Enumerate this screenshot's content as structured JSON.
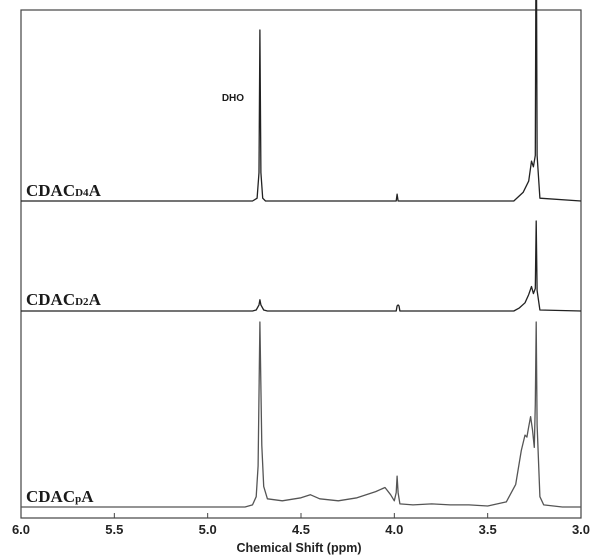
{
  "chart_data": {
    "type": "line",
    "xlabel": "Chemical Shift (ppm)",
    "ylabel": "",
    "xlim": [
      6.0,
      3.0
    ],
    "x_reversed": true,
    "x_ticks": [
      "6.0",
      "5.5",
      "5.0",
      "4.5",
      "4.0",
      "3.5",
      "3.0"
    ],
    "annotation": {
      "text": "DHO",
      "x": 4.72
    },
    "series": [
      {
        "name": "CDACD4A",
        "label_main": "CDAC",
        "label_sub": "D4",
        "label_end": "A",
        "points": [
          [
            6.0,
            0
          ],
          [
            4.76,
            0
          ],
          [
            4.735,
            0.5
          ],
          [
            4.725,
            5
          ],
          [
            4.72,
            30
          ],
          [
            4.715,
            5
          ],
          [
            4.705,
            0.5
          ],
          [
            4.69,
            0
          ],
          [
            3.99,
            0
          ],
          [
            3.985,
            1.2
          ],
          [
            3.98,
            0
          ],
          [
            3.36,
            0
          ],
          [
            3.31,
            1.5
          ],
          [
            3.28,
            3.5
          ],
          [
            3.265,
            7
          ],
          [
            3.255,
            6
          ],
          [
            3.245,
            8
          ],
          [
            3.24,
            55
          ],
          [
            3.235,
            8
          ],
          [
            3.22,
            0.5
          ],
          [
            3.0,
            0
          ]
        ]
      },
      {
        "name": "CDACD2A",
        "label_main": "CDAC",
        "label_sub": "D2",
        "label_end": "A",
        "points": [
          [
            6.0,
            0
          ],
          [
            4.76,
            0
          ],
          [
            4.74,
            1
          ],
          [
            4.725,
            6
          ],
          [
            4.72,
            11
          ],
          [
            4.715,
            6
          ],
          [
            4.7,
            1
          ],
          [
            4.68,
            0
          ],
          [
            3.99,
            0
          ],
          [
            3.985,
            5
          ],
          [
            3.98,
            6
          ],
          [
            3.975,
            5
          ],
          [
            3.97,
            0
          ],
          [
            3.36,
            0
          ],
          [
            3.33,
            3
          ],
          [
            3.3,
            8
          ],
          [
            3.28,
            16
          ],
          [
            3.265,
            24
          ],
          [
            3.255,
            17
          ],
          [
            3.245,
            22
          ],
          [
            3.24,
            88
          ],
          [
            3.235,
            20
          ],
          [
            3.22,
            1
          ],
          [
            3.0,
            0
          ]
        ]
      },
      {
        "name": "CDACpA",
        "label_main": "CDAC",
        "label_sub": "p",
        "label_end": "A",
        "points": [
          [
            6.0,
            0
          ],
          [
            4.8,
            0
          ],
          [
            4.76,
            2
          ],
          [
            4.74,
            10
          ],
          [
            4.73,
            40
          ],
          [
            4.72,
            180
          ],
          [
            4.71,
            60
          ],
          [
            4.7,
            20
          ],
          [
            4.68,
            8
          ],
          [
            4.6,
            6
          ],
          [
            4.5,
            9
          ],
          [
            4.45,
            12
          ],
          [
            4.4,
            8
          ],
          [
            4.3,
            6
          ],
          [
            4.2,
            9
          ],
          [
            4.1,
            15
          ],
          [
            4.05,
            19
          ],
          [
            4.02,
            12
          ],
          [
            4.0,
            6
          ],
          [
            3.99,
            14
          ],
          [
            3.985,
            30
          ],
          [
            3.98,
            14
          ],
          [
            3.97,
            3
          ],
          [
            3.9,
            2
          ],
          [
            3.8,
            3
          ],
          [
            3.7,
            2
          ],
          [
            3.6,
            2
          ],
          [
            3.5,
            1
          ],
          [
            3.4,
            5
          ],
          [
            3.35,
            22
          ],
          [
            3.32,
            55
          ],
          [
            3.3,
            70
          ],
          [
            3.29,
            68
          ],
          [
            3.28,
            78
          ],
          [
            3.27,
            88
          ],
          [
            3.26,
            75
          ],
          [
            3.25,
            58
          ],
          [
            3.245,
            100
          ],
          [
            3.24,
            180
          ],
          [
            3.235,
            80
          ],
          [
            3.22,
            10
          ],
          [
            3.2,
            2
          ],
          [
            3.1,
            0
          ],
          [
            3.0,
            0
          ]
        ]
      }
    ]
  }
}
